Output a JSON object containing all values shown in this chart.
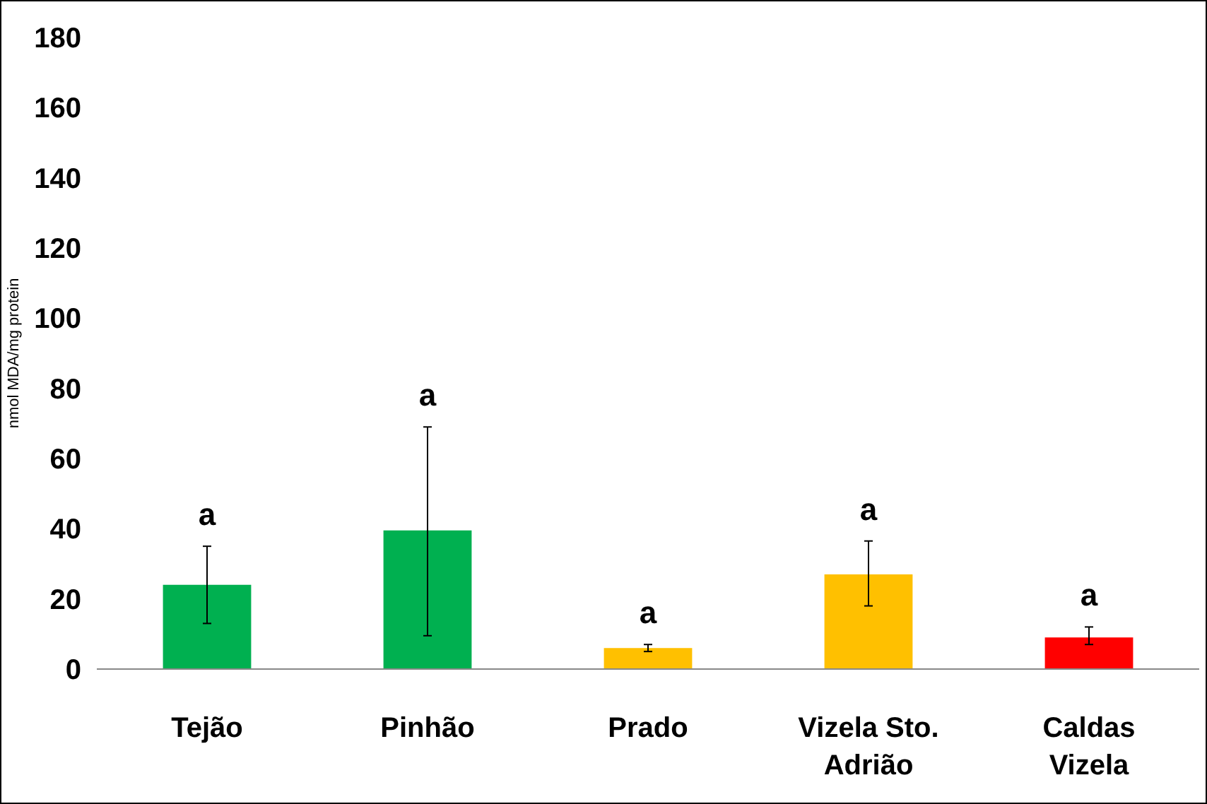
{
  "chart_data": {
    "type": "bar",
    "ylabel": "nmol MDA/mg protein",
    "categories": [
      "Tejão",
      "Pinhão",
      "Prado",
      "Vizela Sto.\nAdrião",
      "Caldas\nVizela"
    ],
    "values": [
      24,
      39.5,
      6,
      27,
      9
    ],
    "colors": [
      "#00b050",
      "#00b050",
      "#ffc000",
      "#ffc000",
      "#ff0000"
    ],
    "errors": [
      [
        13,
        35
      ],
      [
        9.5,
        69
      ],
      [
        5,
        7
      ],
      [
        18,
        36.5
      ],
      [
        7,
        12
      ]
    ],
    "ylim": [
      0,
      180
    ],
    "yticks": [
      0,
      20,
      40,
      60,
      80,
      100,
      120,
      140,
      160,
      180
    ],
    "grid": false,
    "annotations": [
      "a",
      "a",
      "a",
      "a",
      "a"
    ]
  }
}
